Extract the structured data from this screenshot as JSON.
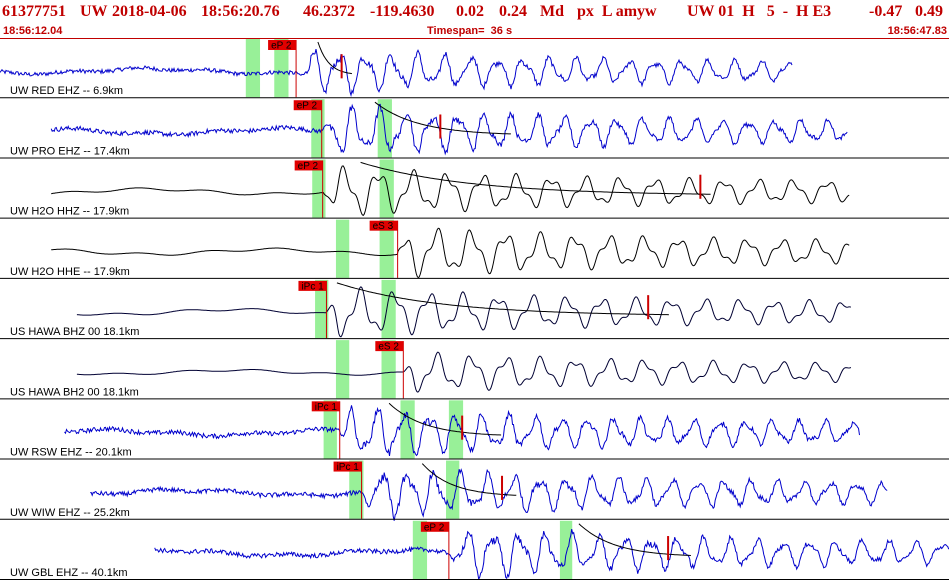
{
  "header": {
    "event_id": "61377751",
    "network": "UW",
    "date": "2018-04-06",
    "time": "18:56:20.76",
    "lat": "46.2372",
    "lon": "-119.4630",
    "depth": "0.02",
    "magnitude": "0.24",
    "mag_type": "Md",
    "quality_codes": "px  L amyw",
    "station_info": "UW 01  H   5  -  H E3",
    "residual_a": "-0.47",
    "residual_b": "0.49"
  },
  "subheader": {
    "start_time": "18:56:12.04",
    "timespan_text": "Timespan=  36 s",
    "end_time": "18:56:47.83"
  },
  "colors": {
    "header_text": "#c00000",
    "separator": "#c00000",
    "pick_box": "#e00000",
    "pick_line": "#cc0000",
    "window_band": "#98f098",
    "coda_curve": "#000000",
    "coda_fit": "#cc0000"
  },
  "traces": [
    {
      "label": "UW RED EHZ -- 6.9km",
      "color": "#0000cc",
      "data_start": 0.0,
      "data_end": 0.835,
      "picks": [
        {
          "t": 0.312,
          "text": "eP 2"
        }
      ],
      "windows": [
        [
          0.259,
          0.274
        ],
        [
          0.289,
          0.304
        ]
      ],
      "coda": {
        "a": 0.335,
        "b": 0.372
      },
      "amp_tick": 0.36,
      "amp_level": 0.9
    },
    {
      "label": "UW PRO EHZ -- 17.4km",
      "color": "#0000cc",
      "data_start": 0.054,
      "data_end": 0.893,
      "picks": [
        {
          "t": 0.339,
          "text": "eP 2"
        }
      ],
      "windows": [
        [
          0.328,
          0.342
        ],
        [
          0.398,
          0.413
        ]
      ],
      "coda": {
        "a": 0.395,
        "b": 0.54
      },
      "amp_tick": 0.464,
      "amp_level": 1.0
    },
    {
      "label": "UW H2O HHZ -- 17.9km",
      "color": "#000000",
      "data_start": 0.054,
      "data_end": 0.895,
      "picks": [
        {
          "t": 0.34,
          "text": "eP 2"
        }
      ],
      "windows": [
        [
          0.329,
          0.343
        ],
        [
          0.4,
          0.415
        ]
      ],
      "coda": {
        "a": 0.38,
        "b": 0.75
      },
      "amp_tick": 0.738,
      "amp_level": 1.0
    },
    {
      "label": "UW H2O HHE -- 17.9km",
      "color": "#000000",
      "data_start": 0.054,
      "data_end": 0.895,
      "picks": [
        {
          "t": 0.419,
          "text": "eS 3"
        }
      ],
      "windows": [
        [
          0.354,
          0.368
        ],
        [
          0.4,
          0.415
        ]
      ],
      "coda": null,
      "amp_tick": null,
      "amp_level": 1.0
    },
    {
      "label": "US HAWA BHZ 00 18.1km",
      "color": "#000033",
      "data_start": 0.081,
      "data_end": 0.897,
      "picks": [
        {
          "t": 0.344,
          "text": "iPc 1"
        }
      ],
      "windows": [
        [
          0.332,
          0.346
        ],
        [
          0.402,
          0.417
        ]
      ],
      "coda": {
        "a": 0.355,
        "b": 0.705
      },
      "amp_tick": 0.683,
      "amp_level": 1.0
    },
    {
      "label": "US HAWA BH2 00 18.1km",
      "color": "#000033",
      "data_start": 0.081,
      "data_end": 0.897,
      "picks": [
        {
          "t": 0.425,
          "text": "eS 2"
        }
      ],
      "windows": [
        [
          0.354,
          0.368
        ],
        [
          0.402,
          0.417
        ]
      ],
      "coda": null,
      "amp_tick": null,
      "amp_level": 0.8
    },
    {
      "label": "UW RSW EHZ -- 20.1km",
      "color": "#0000cc",
      "data_start": 0.068,
      "data_end": 0.906,
      "picks": [
        {
          "t": 0.358,
          "text": "iPc 1"
        }
      ],
      "windows": [
        [
          0.341,
          0.355
        ],
        [
          0.422,
          0.437
        ],
        [
          0.473,
          0.488
        ]
      ],
      "coda": {
        "a": 0.41,
        "b": 0.53
      },
      "amp_tick": 0.487,
      "amp_level": 1.0
    },
    {
      "label": "UW WIW EHZ -- 25.2km",
      "color": "#0000cc",
      "data_start": 0.095,
      "data_end": 0.935,
      "picks": [
        {
          "t": 0.381,
          "text": "iPc 1"
        }
      ],
      "windows": [
        [
          0.368,
          0.383
        ],
        [
          0.47,
          0.484
        ]
      ],
      "coda": {
        "a": 0.445,
        "b": 0.545
      },
      "amp_tick": 0.529,
      "amp_level": 1.0
    },
    {
      "label": "UW GBL EHZ -- 40.1km",
      "color": "#0000cc",
      "data_start": 0.163,
      "data_end": 1.0,
      "picks": [
        {
          "t": 0.473,
          "text": "eP 2"
        }
      ],
      "windows": [
        [
          0.435,
          0.45
        ],
        [
          0.59,
          0.603
        ]
      ],
      "coda": {
        "a": 0.61,
        "b": 0.73
      },
      "amp_tick": 0.704,
      "amp_level": 1.0
    }
  ]
}
